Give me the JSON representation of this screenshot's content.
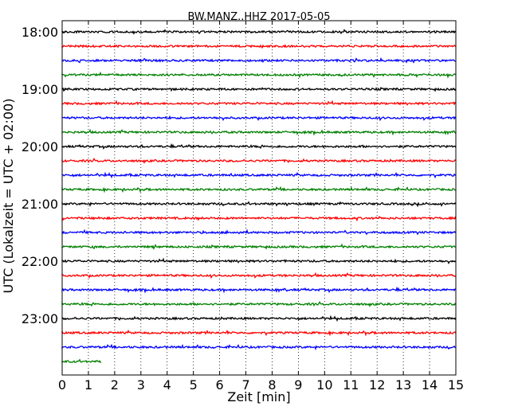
{
  "chart_data": {
    "type": "line",
    "title": "BW.MANZ..HHZ 2017-05-05",
    "xlabel": "Zeit  [min]",
    "ylabel": "UTC (Lokalzeit = UTC + 02:00)",
    "xlim": [
      0,
      15
    ],
    "x_ticks": [
      "0",
      "1",
      "2",
      "3",
      "4",
      "5",
      "6",
      "7",
      "8",
      "9",
      "10",
      "11",
      "12",
      "13",
      "14",
      "15"
    ],
    "y_ticks": [
      "18:00",
      "19:00",
      "20:00",
      "21:00",
      "22:00",
      "23:00"
    ],
    "grid": "vertical dotted",
    "trace_colors": [
      "#000000",
      "#ff0000",
      "#0000ff",
      "#008000"
    ],
    "series": [
      {
        "start": "18:00",
        "duration_min": 15,
        "color": "#000000"
      },
      {
        "start": "18:15",
        "duration_min": 15,
        "color": "#ff0000"
      },
      {
        "start": "18:30",
        "duration_min": 15,
        "color": "#0000ff"
      },
      {
        "start": "18:45",
        "duration_min": 15,
        "color": "#008000"
      },
      {
        "start": "19:00",
        "duration_min": 15,
        "color": "#000000"
      },
      {
        "start": "19:15",
        "duration_min": 15,
        "color": "#ff0000"
      },
      {
        "start": "19:30",
        "duration_min": 15,
        "color": "#0000ff"
      },
      {
        "start": "19:45",
        "duration_min": 15,
        "color": "#008000"
      },
      {
        "start": "20:00",
        "duration_min": 15,
        "color": "#000000"
      },
      {
        "start": "20:15",
        "duration_min": 15,
        "color": "#ff0000"
      },
      {
        "start": "20:30",
        "duration_min": 15,
        "color": "#0000ff"
      },
      {
        "start": "20:45",
        "duration_min": 15,
        "color": "#008000"
      },
      {
        "start": "21:00",
        "duration_min": 15,
        "color": "#000000"
      },
      {
        "start": "21:15",
        "duration_min": 15,
        "color": "#ff0000"
      },
      {
        "start": "21:30",
        "duration_min": 15,
        "color": "#0000ff"
      },
      {
        "start": "21:45",
        "duration_min": 15,
        "color": "#008000"
      },
      {
        "start": "22:00",
        "duration_min": 15,
        "color": "#000000"
      },
      {
        "start": "22:15",
        "duration_min": 15,
        "color": "#ff0000"
      },
      {
        "start": "22:30",
        "duration_min": 15,
        "color": "#0000ff"
      },
      {
        "start": "22:45",
        "duration_min": 15,
        "color": "#008000"
      },
      {
        "start": "23:00",
        "duration_min": 15,
        "color": "#000000"
      },
      {
        "start": "23:15",
        "duration_min": 15,
        "color": "#ff0000"
      },
      {
        "start": "23:30",
        "duration_min": 15,
        "color": "#0000ff"
      },
      {
        "start": "23:45",
        "duration_min": 1.5,
        "color": "#008000"
      }
    ]
  }
}
